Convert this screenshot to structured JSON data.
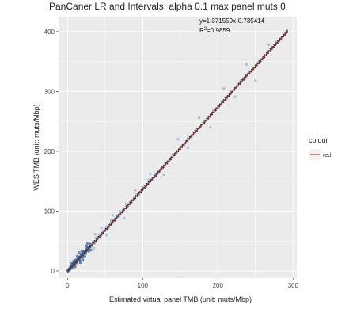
{
  "chart_data": {
    "type": "scatter",
    "title": "PanCaner LR and Intervals: alpha 0.1 max panel muts 0",
    "xlabel": "Estimated virtual panel TMB  (unit: muts/Mbp)",
    "ylabel": "WES TMB  (unit: muts/Mbp)",
    "xlim": [
      -12,
      305
    ],
    "ylim": [
      -12,
      425
    ],
    "xticks": [
      0,
      100,
      200,
      300
    ],
    "yticks": [
      0,
      100,
      200,
      300,
      400
    ],
    "grid": true,
    "fit_equation": "y=1.371559x-0.735414",
    "r2_prefix": "R",
    "r2_sup": "2",
    "r2_value": "=0.9859",
    "fit": {
      "slope": 1.371559,
      "intercept": -0.735414,
      "x_range": [
        0,
        293
      ]
    },
    "legend": {
      "title": "colour",
      "entries": [
        "red"
      ],
      "position": "right"
    },
    "colors": {
      "panel_bg": "#ebebeb",
      "grid": "#ffffff",
      "points": "#6f9fc8",
      "dense_points": "#2f5f8f",
      "fit_line": "#8b1a1a",
      "band": "#111111"
    },
    "points": [
      [
        0.5,
        0.3
      ],
      [
        1,
        1.2
      ],
      [
        1.5,
        1.8
      ],
      [
        2,
        2.5
      ],
      [
        2.5,
        3.6
      ],
      [
        3,
        3.9
      ],
      [
        3.5,
        4.6
      ],
      [
        4,
        5.1
      ],
      [
        4.5,
        6.3
      ],
      [
        5,
        6.6
      ],
      [
        5.5,
        7.8
      ],
      [
        6,
        8.1
      ],
      [
        6.5,
        8.6
      ],
      [
        7,
        9.9
      ],
      [
        7.5,
        10.2
      ],
      [
        8,
        11.4
      ],
      [
        8.5,
        11.3
      ],
      [
        9,
        12.8
      ],
      [
        9.5,
        12.9
      ],
      [
        10,
        14.1
      ],
      [
        10.5,
        14.2
      ],
      [
        11,
        15.6
      ],
      [
        11.5,
        15.4
      ],
      [
        12,
        16.9
      ],
      [
        12.5,
        17.1
      ],
      [
        13,
        18.2
      ],
      [
        13.5,
        18.1
      ],
      [
        14,
        19.9
      ],
      [
        14.5,
        19.6
      ],
      [
        15,
        21.0
      ],
      [
        15.5,
        20.9
      ],
      [
        16,
        22.3
      ],
      [
        16.5,
        22.1
      ],
      [
        17,
        23.8
      ],
      [
        17.5,
        23.5
      ],
      [
        18,
        25.0
      ],
      [
        18.5,
        24.7
      ],
      [
        19,
        26.4
      ],
      [
        19.5,
        26.2
      ],
      [
        20,
        27.8
      ],
      [
        21,
        29.0
      ],
      [
        22,
        30.4
      ],
      [
        23,
        31.8
      ],
      [
        24,
        33.0
      ],
      [
        25,
        34.6
      ],
      [
        26,
        35.4
      ],
      [
        27,
        37.3
      ],
      [
        28,
        38.1
      ],
      [
        29,
        40.2
      ],
      [
        30,
        41.0
      ],
      [
        3,
        2.1
      ],
      [
        4,
        6.9
      ],
      [
        6,
        5.4
      ],
      [
        7,
        12.2
      ],
      [
        9,
        10.1
      ],
      [
        11,
        18.3
      ],
      [
        12,
        13.5
      ],
      [
        14,
        22.4
      ],
      [
        16,
        17.3
      ],
      [
        18,
        27.9
      ],
      [
        20,
        22.6
      ],
      [
        22,
        33.1
      ],
      [
        24,
        29.0
      ],
      [
        26,
        38.2
      ],
      [
        28,
        33.4
      ],
      [
        30,
        44.6
      ],
      [
        32,
        41.1
      ],
      [
        34,
        49.0
      ],
      [
        36,
        46.2
      ],
      [
        38,
        55.0
      ],
      [
        40,
        53.8
      ],
      [
        42,
        60.5
      ],
      [
        44,
        59.1
      ],
      [
        46,
        64.8
      ],
      [
        48,
        67.0
      ],
      [
        50,
        68.2
      ],
      [
        52,
        73.9
      ],
      [
        55,
        72.1
      ],
      [
        58,
        84.5
      ],
      [
        60,
        80.6
      ],
      [
        62,
        86.0
      ],
      [
        65,
        92.4
      ],
      [
        68,
        90.8
      ],
      [
        70,
        99.5
      ],
      [
        74,
        101.2
      ],
      [
        78,
        112.0
      ],
      [
        80,
        108.4
      ],
      [
        84,
        117.3
      ],
      [
        88,
        119.5
      ],
      [
        92,
        128.8
      ],
      [
        95,
        127.0
      ],
      [
        100,
        140.2
      ],
      [
        104,
        141.1
      ],
      [
        108,
        151.8
      ],
      [
        112,
        152.3
      ],
      [
        116,
        162.0
      ],
      [
        120,
        162.5
      ],
      [
        125,
        170.4
      ],
      [
        130,
        180.6
      ],
      [
        135,
        183.9
      ],
      [
        140,
        194.5
      ],
      [
        145,
        197.6
      ],
      [
        150,
        208.0
      ],
      [
        155,
        210.3
      ],
      [
        160,
        221.5
      ],
      [
        165,
        224.0
      ],
      [
        170,
        234.6
      ],
      [
        176,
        239.8
      ],
      [
        182,
        251.0
      ],
      [
        188,
        256.4
      ],
      [
        194,
        268.8
      ],
      [
        200,
        272.0
      ],
      [
        206,
        284.3
      ],
      [
        212,
        288.1
      ],
      [
        218,
        300.2
      ],
      [
        224,
        306.9
      ],
      [
        230,
        317.4
      ],
      [
        236,
        321.0
      ],
      [
        242,
        333.5
      ],
      [
        248,
        339.2
      ],
      [
        254,
        349.0
      ],
      [
        260,
        357.1
      ],
      [
        266,
        366.9
      ],
      [
        272,
        371.4
      ],
      [
        278,
        382.5
      ],
      [
        284,
        388.0
      ],
      [
        290,
        398.6
      ],
      [
        292,
        401.3
      ],
      [
        15,
        30.5
      ],
      [
        20,
        18.0
      ],
      [
        25,
        42.0
      ],
      [
        35,
        38.0
      ],
      [
        45,
        72.0
      ],
      [
        52,
        60.0
      ],
      [
        60,
        93.0
      ],
      [
        75,
        88.0
      ],
      [
        90,
        135.0
      ],
      [
        110,
        162.0
      ],
      [
        128,
        161.0
      ],
      [
        147,
        220.0
      ],
      [
        160,
        206.0
      ],
      [
        175,
        256.0
      ],
      [
        190,
        240.0
      ],
      [
        208,
        305.0
      ],
      [
        223,
        291.0
      ],
      [
        238,
        345.0
      ],
      [
        250,
        318.0
      ],
      [
        268,
        378.0
      ],
      [
        5,
        12.0
      ],
      [
        8,
        16.5
      ],
      [
        10,
        7.0
      ],
      [
        13,
        24.5
      ],
      [
        17,
        14.0
      ],
      [
        19,
        33.0
      ],
      [
        23,
        24.0
      ],
      [
        27,
        46.0
      ],
      [
        31,
        35.0
      ],
      [
        37,
        61.0
      ]
    ]
  }
}
